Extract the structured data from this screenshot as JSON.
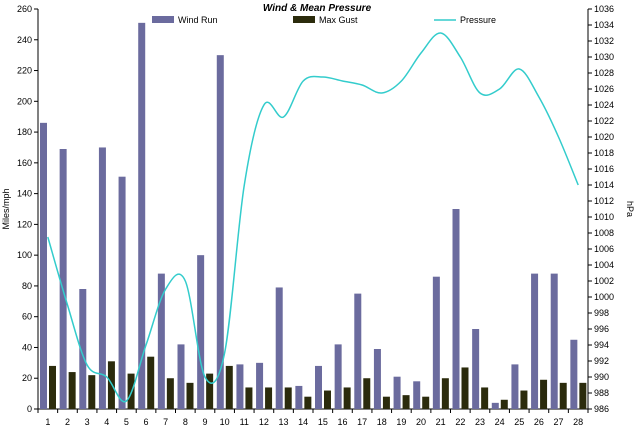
{
  "chart_data": {
    "type": "bar",
    "title": "Wind & Mean Pressure",
    "xlabel": "",
    "ylabel": "Miles/mph",
    "y2label": "hPa",
    "categories": [
      "1",
      "2",
      "3",
      "4",
      "5",
      "6",
      "7",
      "8",
      "9",
      "10",
      "11",
      "12",
      "13",
      "14",
      "15",
      "16",
      "17",
      "18",
      "19",
      "20",
      "21",
      "22",
      "23",
      "24",
      "25",
      "26",
      "27",
      "28"
    ],
    "ylim": [
      0,
      260
    ],
    "yticks": [
      0,
      20,
      40,
      60,
      80,
      100,
      120,
      140,
      160,
      180,
      200,
      220,
      240,
      260
    ],
    "y2lim": [
      986,
      1036
    ],
    "y2ticks": [
      986,
      988,
      990,
      992,
      994,
      996,
      998,
      1000,
      1002,
      1004,
      1006,
      1008,
      1010,
      1012,
      1014,
      1016,
      1018,
      1020,
      1022,
      1024,
      1026,
      1028,
      1030,
      1032,
      1034,
      1036
    ],
    "grid": false,
    "legend": "top",
    "series": [
      {
        "name": "Wind Run",
        "type": "bar",
        "axis": "left",
        "color": "#6b6b9e",
        "values": [
          186,
          169,
          78,
          170,
          151,
          251,
          88,
          42,
          100,
          230,
          29,
          30,
          79,
          15,
          28,
          42,
          75,
          39,
          21,
          18,
          86,
          130,
          52,
          4,
          29,
          88,
          88,
          45
        ]
      },
      {
        "name": "Max Gust",
        "type": "bar",
        "axis": "left",
        "color": "#2b2b0c",
        "values": [
          28,
          24,
          22,
          31,
          23,
          34,
          20,
          17,
          23,
          28,
          14,
          14,
          14,
          8,
          12,
          14,
          20,
          8,
          9,
          8,
          20,
          27,
          14,
          6,
          12,
          19,
          17,
          17
        ]
      },
      {
        "name": "Pressure",
        "type": "line",
        "axis": "right",
        "color": "#33cccc",
        "values": [
          1007.5,
          999,
          991.5,
          990,
          987,
          994,
          1001,
          1002,
          990,
          993,
          1014,
          1024,
          1022.5,
          1027,
          1027.5,
          1027,
          1026.5,
          1025.5,
          1027,
          1030.5,
          1033,
          1030,
          1025.5,
          1026,
          1028.5,
          1025,
          1020,
          1014
        ]
      }
    ]
  }
}
